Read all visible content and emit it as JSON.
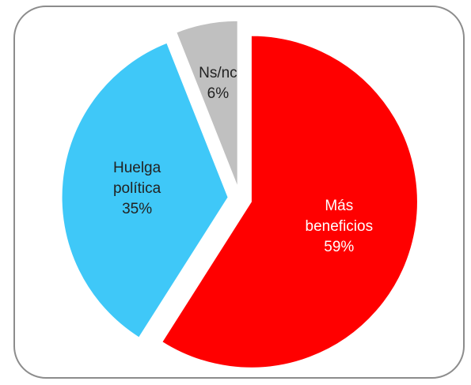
{
  "chart_data": {
    "type": "pie",
    "categories": [
      "Más beneficios",
      "Huelga política",
      "Ns/nc"
    ],
    "values": [
      59,
      35,
      6
    ],
    "value_labels": [
      "59%",
      "35%",
      "6%"
    ],
    "colors": [
      "#ff0000",
      "#3fc8f8",
      "#c0c0c0"
    ],
    "exploded": true
  }
}
